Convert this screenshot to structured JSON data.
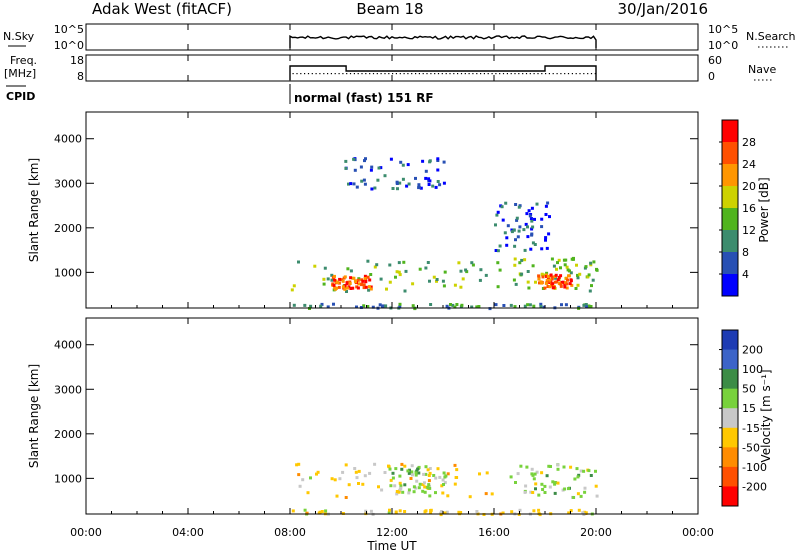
{
  "header": {
    "station": "Adak West (fitACF)",
    "beam": "Beam 18",
    "date": "30/Jan/2016"
  },
  "labels": {
    "nsky": "N.Sky",
    "nsearch": "N.Search",
    "freq_line1": "Freq.",
    "freq_line2": "[MHz]",
    "nave": "Nave",
    "cpid": "CPID",
    "cpid_mode": "normal (fast) 151 RF"
  },
  "noise_axis": {
    "ticks_left": [
      "10^5",
      "10^0"
    ],
    "ticks_right": [
      "10^5",
      "10^0"
    ]
  },
  "freq_axis": {
    "ticks_left": [
      "18",
      "8"
    ],
    "ticks_right": [
      "60",
      "0"
    ]
  },
  "chart_data": [
    {
      "type": "heatmap",
      "name": "power",
      "ylabel": "Slant Range [km]",
      "yticks": [
        "1000",
        "2000",
        "3000",
        "4000"
      ],
      "ylim": [
        200,
        4600
      ],
      "xlim": [
        0,
        24
      ],
      "colorbar": {
        "label": "Power [dB]",
        "ticks": [
          "4",
          "8",
          "12",
          "16",
          "20",
          "24",
          "28"
        ],
        "colors": [
          "#0000ff",
          "#2850b4",
          "#3c8c6e",
          "#50b41e",
          "#cdd200",
          "#ff9600",
          "#ff5000",
          "#ff0000"
        ]
      },
      "echo_regions": [
        {
          "t0": 8.0,
          "t1": 16.2,
          "r0": 600,
          "r1": 1350,
          "level": 3
        },
        {
          "t0": 9.6,
          "t1": 11.2,
          "r0": 650,
          "r1": 950,
          "level": 6
        },
        {
          "t0": 16.6,
          "t1": 20.0,
          "r0": 600,
          "r1": 1350,
          "level": 3
        },
        {
          "t0": 17.6,
          "t1": 19.0,
          "r0": 680,
          "r1": 980,
          "level": 6
        },
        {
          "t0": 10.0,
          "t1": 14.0,
          "r0": 2900,
          "r1": 3600,
          "level": 1
        },
        {
          "t0": 16.0,
          "t1": 18.2,
          "r0": 1500,
          "r1": 2600,
          "level": 1
        },
        {
          "t0": 8.0,
          "t1": 20.0,
          "r0": 220,
          "r1": 320,
          "level": 2
        }
      ]
    },
    {
      "type": "heatmap",
      "name": "velocity",
      "ylabel": "Slant Range [km]",
      "yticks": [
        "1000",
        "2000",
        "3000",
        "4000"
      ],
      "ylim": [
        200,
        4600
      ],
      "xlim": [
        0,
        24
      ],
      "colorbar": {
        "label": "Velocity [m s⁻¹]",
        "ticks": [
          "200",
          "100",
          "50",
          "15",
          "-15",
          "-50",
          "-100",
          "-200"
        ],
        "colors": [
          "#1e3cb4",
          "#3c64c8",
          "#3c8c46",
          "#78d23c",
          "#c8c8c8",
          "#ffc800",
          "#ff8c00",
          "#ff5000",
          "#ff0000"
        ]
      },
      "echo_regions": [
        {
          "t0": 8.0,
          "t1": 16.2,
          "r0": 600,
          "r1": 1350,
          "dominant": "orange"
        },
        {
          "t0": 11.8,
          "t1": 14.2,
          "r0": 700,
          "r1": 1300,
          "dominant": "green"
        },
        {
          "t0": 16.6,
          "t1": 20.0,
          "r0": 600,
          "r1": 1350,
          "dominant": "green"
        },
        {
          "t0": 8.0,
          "t1": 20.0,
          "r0": 220,
          "r1": 320,
          "dominant": "orange"
        }
      ]
    }
  ],
  "time_axis": {
    "ticks": [
      "00:00",
      "04:00",
      "08:00",
      "12:00",
      "16:00",
      "20:00",
      "00:00"
    ],
    "label": "Time UT"
  }
}
